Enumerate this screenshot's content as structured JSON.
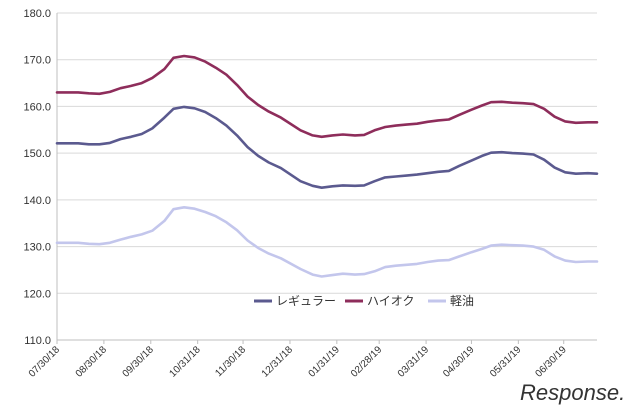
{
  "watermark": "Response.",
  "chart_data": {
    "type": "line",
    "title": "",
    "xlabel": "",
    "ylabel": "",
    "ylim": [
      110,
      180
    ],
    "yticks": [
      "110.0",
      "120.0",
      "130.0",
      "140.0",
      "150.0",
      "160.0",
      "170.0",
      "180.0"
    ],
    "xtick_labels": [
      "07/30/18",
      "08/30/18",
      "09/30/18",
      "10/31/18",
      "11/30/18",
      "12/31/18",
      "01/31/19",
      "02/28/19",
      "03/31/19",
      "04/30/19",
      "05/31/19",
      "06/30/19"
    ],
    "grid": true,
    "legend_position": "bottom-center",
    "x": [
      "2018-07-30",
      "2018-08-06",
      "2018-08-13",
      "2018-08-20",
      "2018-08-27",
      "2018-09-03",
      "2018-09-10",
      "2018-09-17",
      "2018-09-24",
      "2018-10-01",
      "2018-10-09",
      "2018-10-15",
      "2018-10-22",
      "2018-10-29",
      "2018-11-05",
      "2018-11-12",
      "2018-11-19",
      "2018-11-26",
      "2018-12-03",
      "2018-12-10",
      "2018-12-17",
      "2018-12-25",
      "2019-01-07",
      "2019-01-15",
      "2019-01-21",
      "2019-01-28",
      "2019-02-04",
      "2019-02-12",
      "2019-02-18",
      "2019-02-25",
      "2019-03-04",
      "2019-03-11",
      "2019-03-18",
      "2019-03-25",
      "2019-04-01",
      "2019-04-08",
      "2019-04-15",
      "2019-04-22",
      "2019-04-30",
      "2019-05-07",
      "2019-05-13",
      "2019-05-20",
      "2019-05-27",
      "2019-06-03",
      "2019-06-10",
      "2019-06-17",
      "2019-06-24",
      "2019-07-01",
      "2019-07-08",
      "2019-07-16",
      "2019-07-22"
    ],
    "series": [
      {
        "name": "レギュラー",
        "color": "#5b5a8f",
        "values": [
          152.1,
          152.1,
          152.1,
          151.9,
          151.9,
          152.2,
          153.0,
          153.5,
          154.1,
          155.3,
          157.6,
          159.5,
          159.9,
          159.6,
          158.8,
          157.5,
          155.9,
          153.8,
          151.3,
          149.4,
          148.0,
          146.8,
          144.0,
          143.0,
          142.6,
          142.9,
          143.1,
          143.0,
          143.1,
          144.0,
          144.8,
          145.0,
          145.2,
          145.4,
          145.7,
          146.0,
          146.2,
          147.3,
          148.4,
          149.4,
          150.1,
          150.2,
          150.0,
          149.9,
          149.7,
          148.6,
          146.9,
          145.9,
          145.6,
          145.7,
          145.6
        ]
      },
      {
        "name": "ハイオク",
        "color": "#8e2d5b",
        "values": [
          163.0,
          163.0,
          163.0,
          162.8,
          162.7,
          163.1,
          163.9,
          164.4,
          165.0,
          166.1,
          168.0,
          170.4,
          170.8,
          170.5,
          169.6,
          168.3,
          166.8,
          164.6,
          162.1,
          160.3,
          158.9,
          157.6,
          154.9,
          153.8,
          153.5,
          153.8,
          154.0,
          153.8,
          153.9,
          154.9,
          155.6,
          155.9,
          156.1,
          156.3,
          156.7,
          157.0,
          157.2,
          158.2,
          159.3,
          160.2,
          160.9,
          161.0,
          160.8,
          160.7,
          160.5,
          159.5,
          157.8,
          156.8,
          156.5,
          156.6,
          156.6
        ]
      },
      {
        "name": "軽油",
        "color": "#c3c6ec",
        "values": [
          130.8,
          130.8,
          130.8,
          130.6,
          130.5,
          130.8,
          131.5,
          132.1,
          132.6,
          133.4,
          135.5,
          138.0,
          138.4,
          138.1,
          137.4,
          136.5,
          135.2,
          133.5,
          131.3,
          129.7,
          128.5,
          127.5,
          125.2,
          124.0,
          123.6,
          123.9,
          124.2,
          124.0,
          124.1,
          124.7,
          125.6,
          125.9,
          126.1,
          126.3,
          126.7,
          127.0,
          127.1,
          127.9,
          128.8,
          129.5,
          130.2,
          130.4,
          130.3,
          130.2,
          130.0,
          129.3,
          127.9,
          127.0,
          126.7,
          126.8,
          126.8
        ]
      }
    ]
  }
}
